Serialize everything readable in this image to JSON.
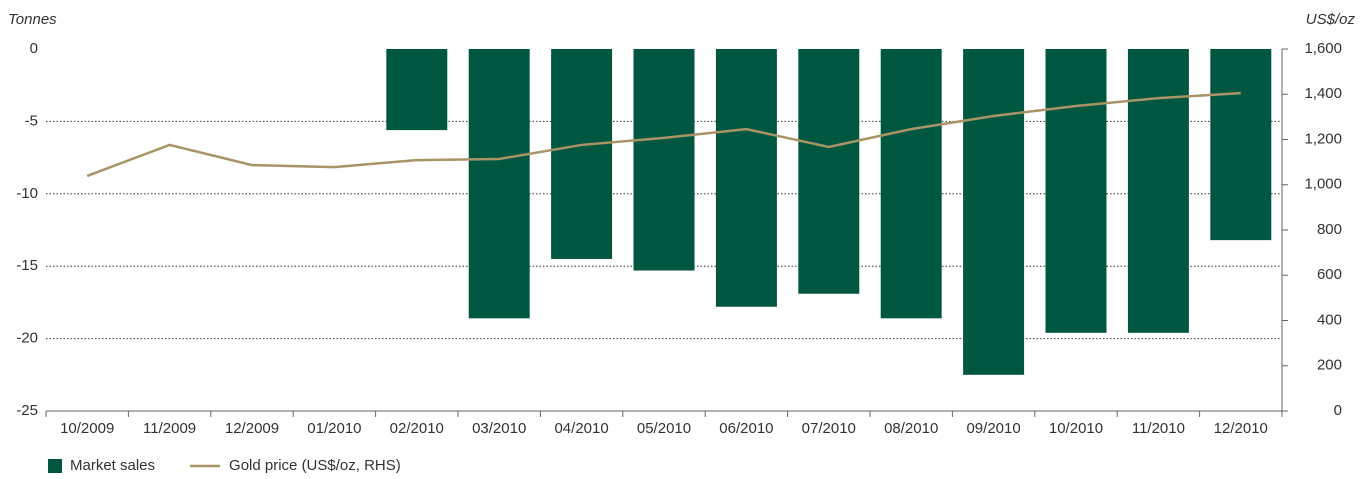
{
  "chart_data": {
    "type": "bar",
    "y_label": "Tonnes",
    "y2_label": "US$/oz",
    "categories": [
      "10/2009",
      "11/2009",
      "12/2009",
      "01/2010",
      "02/2010",
      "03/2010",
      "04/2010",
      "05/2010",
      "06/2010",
      "07/2010",
      "08/2010",
      "09/2010",
      "10/2010",
      "11/2010",
      "12/2010"
    ],
    "series": [
      {
        "name": "Market sales",
        "type": "bar",
        "color": "#00573f",
        "values": [
          null,
          null,
          null,
          null,
          -5.6,
          -18.6,
          -14.5,
          -15.3,
          -17.8,
          -16.9,
          -18.6,
          -22.5,
          -19.6,
          -19.6,
          -13.2
        ]
      },
      {
        "name": "Gold price (US$/oz, RHS)",
        "type": "line",
        "axis": "y2",
        "color": "#a89466",
        "values": [
          1039,
          1176,
          1087,
          1078,
          1109,
          1114,
          1176,
          1207,
          1246,
          1167,
          1246,
          1304,
          1348,
          1383,
          1405
        ]
      }
    ],
    "ylim": [
      -25,
      0
    ],
    "yticks": [
      0,
      -5,
      -10,
      -15,
      -20,
      -25
    ],
    "y2lim": [
      0,
      1600
    ],
    "y2ticks": [
      0,
      200,
      400,
      600,
      800,
      {
        "value": 1000,
        "label": "1,000"
      },
      {
        "value": 1200,
        "label": "1,200"
      },
      {
        "value": 1400,
        "label": "1,400"
      },
      {
        "value": 1600,
        "label": "1,600"
      }
    ],
    "grid": true,
    "legend": "bottom"
  }
}
